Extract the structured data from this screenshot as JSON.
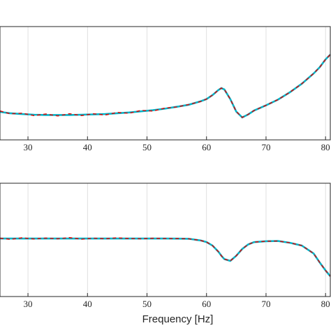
{
  "chart_data": [
    {
      "type": "line",
      "grid": true,
      "x": [
        25.3,
        27,
        29,
        31,
        33,
        35,
        37,
        39,
        41,
        43,
        45,
        47,
        49,
        51,
        53,
        55,
        57,
        59,
        60,
        61,
        62,
        62.5,
        63,
        64,
        65,
        66,
        67,
        68,
        70,
        72,
        74,
        76,
        78,
        79,
        80,
        80.8
      ],
      "xlim": [
        25.3,
        80.8
      ],
      "xticks": [
        30,
        40,
        50,
        60,
        70,
        80
      ],
      "ylim": [
        0,
        10
      ],
      "series": [
        {
          "color": "#00b4c8",
          "style": "solid",
          "values": [
            2.47,
            2.35,
            2.28,
            2.22,
            2.2,
            2.2,
            2.2,
            2.22,
            2.25,
            2.28,
            2.35,
            2.42,
            2.52,
            2.62,
            2.75,
            2.92,
            3.1,
            3.4,
            3.6,
            3.95,
            4.4,
            4.57,
            4.45,
            3.6,
            2.5,
            1.98,
            2.25,
            2.59,
            3.05,
            3.55,
            4.2,
            4.95,
            5.86,
            6.4,
            7.1,
            7.53
          ]
        },
        {
          "color": "#d01010",
          "style": "dashed",
          "values": [
            2.55,
            2.3,
            2.35,
            2.15,
            2.28,
            2.12,
            2.3,
            2.15,
            2.3,
            2.2,
            2.42,
            2.35,
            2.6,
            2.55,
            2.8,
            2.9,
            3.12,
            3.38,
            3.6,
            3.95,
            4.4,
            4.57,
            4.45,
            3.6,
            2.5,
            1.98,
            2.25,
            2.59,
            3.05,
            3.55,
            4.2,
            4.95,
            5.86,
            6.4,
            7.1,
            7.53
          ]
        }
      ]
    },
    {
      "type": "line",
      "grid": true,
      "xlabel": "Frequency [Hz]",
      "x": [
        25.3,
        27,
        29,
        31,
        33,
        35,
        37,
        39,
        41,
        43,
        45,
        47,
        49,
        51,
        53,
        55,
        57,
        59,
        60,
        61,
        62,
        62.5,
        63,
        64,
        65,
        66,
        67,
        68,
        70,
        72,
        74,
        76,
        78,
        79,
        80,
        80.8
      ],
      "xlim": [
        25.3,
        80.8
      ],
      "xticks": [
        30,
        40,
        50,
        60,
        70,
        80
      ],
      "ylim": [
        0,
        10
      ],
      "series": [
        {
          "color": "#00b4c8",
          "style": "solid",
          "values": [
            5.12,
            5.12,
            5.12,
            5.12,
            5.12,
            5.12,
            5.12,
            5.12,
            5.12,
            5.12,
            5.12,
            5.12,
            5.12,
            5.12,
            5.12,
            5.11,
            5.1,
            4.95,
            4.81,
            4.5,
            3.95,
            3.6,
            3.3,
            3.15,
            3.6,
            4.2,
            4.6,
            4.8,
            4.88,
            4.9,
            4.75,
            4.5,
            3.8,
            3.02,
            2.3,
            1.79
          ]
        },
        {
          "color": "#d01010",
          "style": "dashed",
          "values": [
            5.15,
            5.05,
            5.18,
            5.08,
            5.16,
            5.1,
            5.2,
            5.06,
            5.15,
            5.1,
            5.18,
            5.12,
            5.1,
            5.14,
            5.12,
            5.11,
            5.1,
            4.95,
            4.81,
            4.5,
            3.95,
            3.6,
            3.3,
            3.15,
            3.6,
            4.2,
            4.6,
            4.8,
            4.88,
            4.9,
            4.75,
            4.5,
            3.8,
            3.02,
            2.3,
            1.79
          ]
        }
      ]
    }
  ]
}
